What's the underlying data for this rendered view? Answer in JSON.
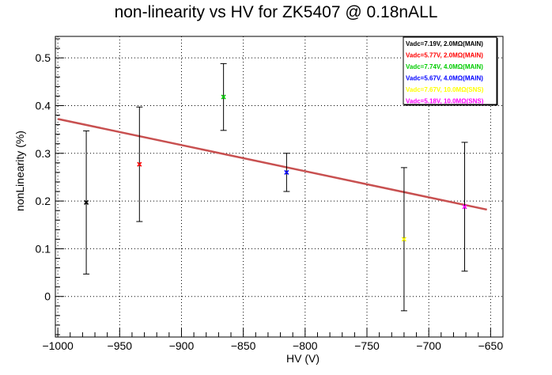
{
  "chart_data": {
    "type": "scatter",
    "title": "non-linearity vs HV for ZK5407 @ 0.18nALL",
    "xlabel": "HV (V)",
    "ylabel": "nonLinearity (%)",
    "xlim": [
      -1002,
      -640
    ],
    "ylim": [
      -0.085,
      0.545
    ],
    "xticks": [
      -1000,
      -950,
      -900,
      -850,
      -800,
      -750,
      -700,
      -650
    ],
    "xtick_labels": [
      "−1000",
      "−950",
      "−900",
      "−850",
      "−800",
      "−750",
      "−700",
      "−650"
    ],
    "yticks": [
      0,
      0.1,
      0.2,
      0.3,
      0.4,
      0.5
    ],
    "ytick_labels": [
      "0",
      "0.1",
      "0.2",
      "0.3",
      "0.4",
      "0.5"
    ],
    "grid": true,
    "legend_position": "top-right",
    "series": [
      {
        "name": "Vadc=7.19V, 2.0MΩ(MAIN)",
        "color": "#000000",
        "x": -977,
        "y": 0.197,
        "err": 0.15
      },
      {
        "name": "Vadc=5.77V, 2.0MΩ(MAIN)",
        "color": "#ff0000",
        "x": -934,
        "y": 0.277,
        "err": 0.12
      },
      {
        "name": "Vadc=7.74V, 4.0MΩ(MAIN)",
        "color": "#00cc00",
        "x": -866,
        "y": 0.418,
        "err": 0.07
      },
      {
        "name": "Vadc=5.67V, 4.0MΩ(MAIN)",
        "color": "#0000ff",
        "x": -815,
        "y": 0.26,
        "err": 0.04
      },
      {
        "name": "Vadc=7.67V, 10.0MΩ(SNS)",
        "color": "#ffff00",
        "x": -720,
        "y": 0.12,
        "err": 0.15
      },
      {
        "name": "Vadc=5.18V, 10.0MΩ(SNS)",
        "color": "#ff00ff",
        "x": -671,
        "y": 0.188,
        "err": 0.135
      }
    ],
    "fit": {
      "color": "#c85050",
      "x": [
        -1000,
        -653
      ],
      "y": [
        0.372,
        0.182
      ]
    }
  }
}
